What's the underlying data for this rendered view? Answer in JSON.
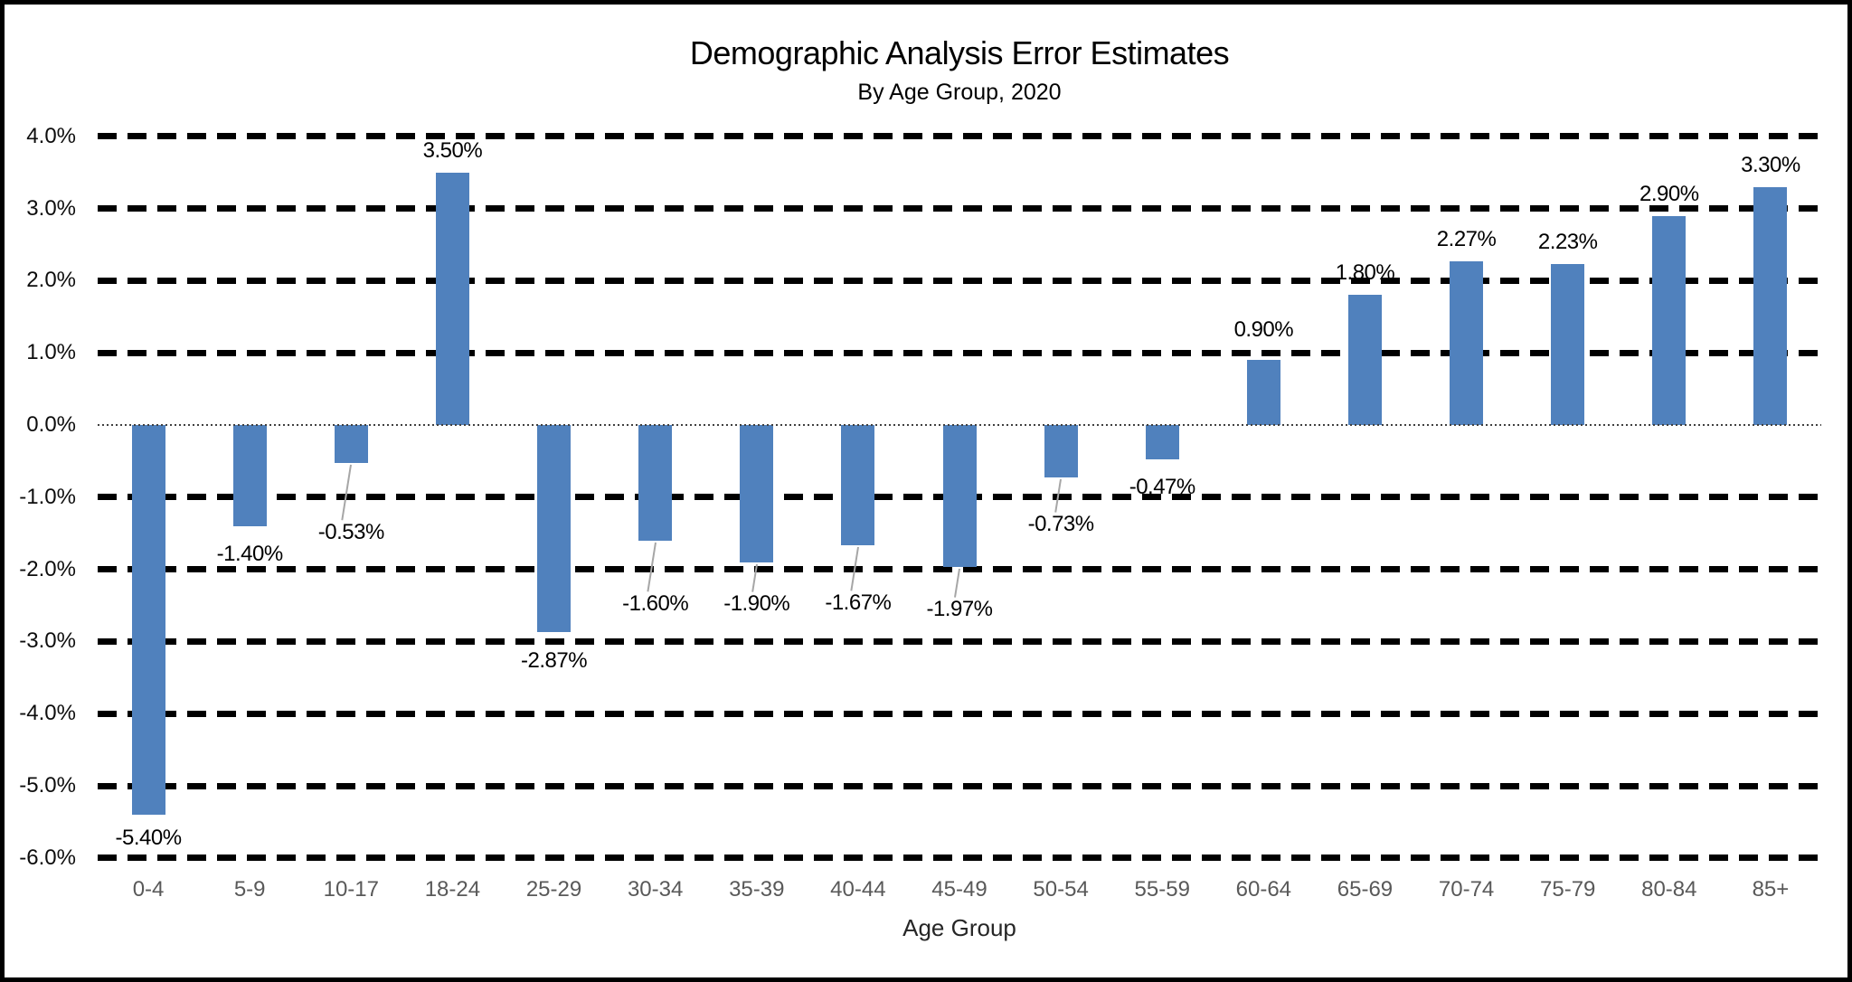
{
  "chart_data": {
    "type": "bar",
    "title": "Demographic Analysis Error Estimates",
    "subtitle": "By Age Group, 2020",
    "xlabel": "Age Group",
    "ylabel": "",
    "categories": [
      "0-4",
      "5-9",
      "10-17",
      "18-24",
      "25-29",
      "30-34",
      "35-39",
      "40-44",
      "45-49",
      "50-54",
      "55-59",
      "60-64",
      "65-69",
      "70-74",
      "75-79",
      "80-84",
      "85+"
    ],
    "values": [
      -5.4,
      -1.4,
      -0.53,
      3.5,
      -2.87,
      -1.6,
      -1.9,
      -1.67,
      -1.97,
      -0.73,
      -0.47,
      0.9,
      1.8,
      2.27,
      2.23,
      2.9,
      3.3
    ],
    "data_labels": [
      "-5.40%",
      "-1.40%",
      "-0.53%",
      "3.50%",
      "-2.87%",
      "-1.60%",
      "-1.90%",
      "-1.67%",
      "-1.97%",
      "-0.73%",
      "-0.47%",
      "0.90%",
      "1.80%",
      "2.27%",
      "2.23%",
      "2.90%",
      "3.30%"
    ],
    "ylim": [
      -6.0,
      4.0
    ],
    "y_ticks": [
      4.0,
      3.0,
      2.0,
      1.0,
      0.0,
      -1.0,
      -2.0,
      -3.0,
      -4.0,
      -5.0,
      -6.0
    ],
    "y_tick_labels": [
      "4.0%",
      "3.0%",
      "2.0%",
      "1.0%",
      "0.0%",
      "-1.0%",
      "-2.0%",
      "-3.0%",
      "-4.0%",
      "-5.0%",
      "-6.0%"
    ],
    "grid": "horizontal heavy dashed black, zero line fine dotted",
    "legend": "none",
    "bar_color": "#5081BD",
    "gridline_color": "#000000",
    "zero_line_color": "#404040",
    "x_tick_color": "#595959",
    "leader_line_color": "#a6a6a6",
    "leader_line_indices": [
      2,
      5,
      6,
      7,
      8,
      9
    ]
  }
}
